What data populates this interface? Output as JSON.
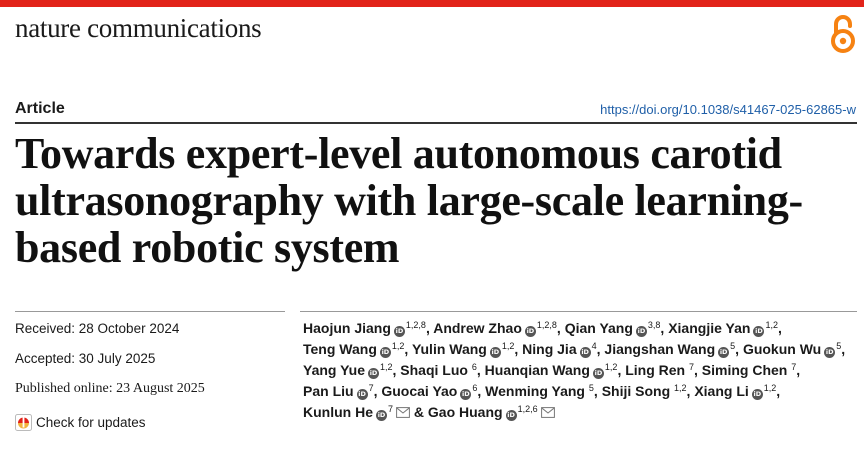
{
  "journal_name": "nature communications",
  "article_type": "Article",
  "doi": "https://doi.org/10.1038/s41467-025-62865-w",
  "title": "Towards expert-level autonomous carotid ultrasonography with large-scale learning-based robotic system",
  "dates": {
    "received": "Received: 28 October 2024",
    "accepted": "Accepted: 30 July 2025",
    "published": "Published online: 23 August 2025"
  },
  "check_updates_label": "Check for updates",
  "authors": [
    {
      "name": "Haojun Jiang",
      "sup": "1,2,8",
      "orcid": true,
      "sep": ", "
    },
    {
      "name": "Andrew Zhao",
      "sup": "1,2,8",
      "orcid": true,
      "sep": ", "
    },
    {
      "name": "Qian Yang",
      "sup": "3,8",
      "orcid": true,
      "sep": ", "
    },
    {
      "name": "Xiangjie Yan",
      "sup": "1,2",
      "orcid": true,
      "sep": ", "
    },
    {
      "name": "Teng Wang",
      "sup": "1,2",
      "orcid": true,
      "sep": ", "
    },
    {
      "name": "Yulin Wang",
      "sup": "1,2",
      "orcid": true,
      "sep": ", "
    },
    {
      "name": "Ning Jia",
      "sup": "4",
      "orcid": true,
      "sep": ", "
    },
    {
      "name": "Jiangshan Wang",
      "sup": "5",
      "orcid": true,
      "sep": ", "
    },
    {
      "name": "Guokun Wu",
      "sup": "5",
      "orcid": true,
      "sep": ", "
    },
    {
      "name": "Yang Yue",
      "sup": "1,2",
      "orcid": true,
      "sep": ", "
    },
    {
      "name": "Shaqi Luo",
      "sup": "6",
      "orcid": false,
      "sep": ", "
    },
    {
      "name": "Huanqian Wang",
      "sup": "1,2",
      "orcid": true,
      "sep": ", "
    },
    {
      "name": "Ling Ren",
      "sup": "7",
      "orcid": false,
      "sep": ", "
    },
    {
      "name": "Siming Chen",
      "sup": "7",
      "orcid": false,
      "sep": ", "
    },
    {
      "name": "Pan Liu",
      "sup": "7",
      "orcid": true,
      "sep": ", "
    },
    {
      "name": "Guocai Yao",
      "sup": "6",
      "orcid": true,
      "sep": ", "
    },
    {
      "name": "Wenming Yang",
      "sup": "5",
      "orcid": false,
      "sep": ", "
    },
    {
      "name": "Shiji Song",
      "sup": "1,2",
      "orcid": false,
      "sep": ", "
    },
    {
      "name": "Xiang Li",
      "sup": "1,2",
      "orcid": true,
      "sep": ", "
    },
    {
      "name": "Kunlun He",
      "sup": "7",
      "orcid": true,
      "mail": true,
      "sep": " & "
    },
    {
      "name": "Gao Huang",
      "sup": "1,2,6",
      "orcid": true,
      "mail": true,
      "sep": ""
    }
  ],
  "icons": {
    "open_access": "open-access-lock-icon",
    "orcid": "orcid-icon",
    "mail": "mail-icon",
    "updates": "check-for-updates-icon"
  },
  "colors": {
    "accent_red": "#e2231a",
    "open_access_orange": "#f68212",
    "link_blue": "#1f5fa8"
  }
}
